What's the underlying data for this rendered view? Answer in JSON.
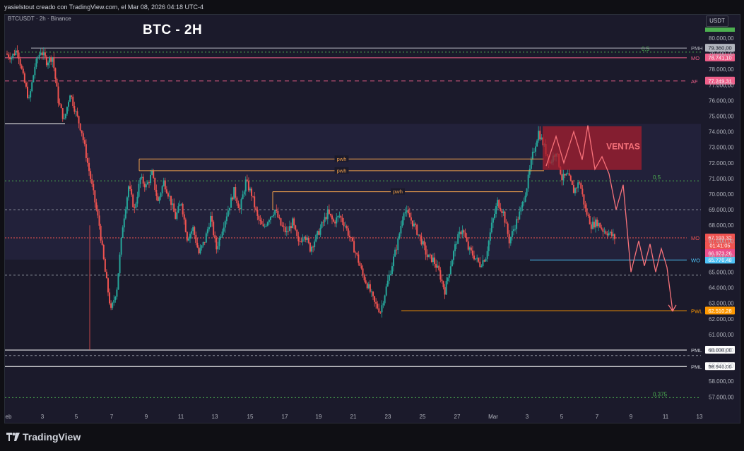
{
  "header": {
    "credit": "yasielstout creado con TradingView.com, el Mar 08, 2026 04:18 UTC-4",
    "symbol": "BTCUSDT · 2h · Binance",
    "title": "BTC - 2H",
    "currency": "USDT",
    "brand": "TradingView"
  },
  "chart_data": {
    "type": "candlestick",
    "title": "BTC - 2H",
    "y_axis": {
      "min": 56000,
      "max": 80500,
      "ticks": [
        "57.000,00",
        "58.000,00",
        "59.000,00",
        "60.000,00",
        "61.000,00",
        "62.000,00",
        "63.000,00",
        "64.000,00",
        "65.000,00",
        "66.000,00",
        "67.000,00",
        "68.000,00",
        "69.000,00",
        "70.000,00",
        "71.000,00",
        "72.000,00",
        "73.000,00",
        "74.000,00",
        "75.000,00",
        "76.000,00",
        "77.000,00",
        "78.000,00",
        "79.000,00",
        "80.000,00"
      ]
    },
    "x_axis": {
      "ticks": [
        "eb",
        "3",
        "5",
        "7",
        "9",
        "11",
        "13",
        "15",
        "17",
        "19",
        "21",
        "23",
        "25",
        "27",
        "Mar",
        "3",
        "5",
        "7",
        "9",
        "11",
        "13"
      ]
    },
    "price_path": [
      79000,
      78800,
      79300,
      77500,
      76000,
      78200,
      79200,
      78500,
      78800,
      76000,
      74700,
      76500,
      75200,
      74000,
      72000,
      70000,
      68000,
      65000,
      62500,
      64000,
      68000,
      70500,
      69000,
      71000,
      70500,
      71300,
      69500,
      70800,
      69800,
      68500,
      69500,
      67200,
      67800,
      66200,
      67000,
      68500,
      66500,
      67800,
      69000,
      70200,
      69000,
      70800,
      70000,
      68500,
      67800,
      68500,
      69000,
      68000,
      67500,
      68200,
      66800,
      67500,
      66500,
      67200,
      68000,
      68800,
      68200,
      68600,
      68000,
      67000,
      66000,
      64800,
      64000,
      63000,
      62500,
      64000,
      65500,
      67000,
      69000,
      68500,
      67800,
      67000,
      66000,
      65800,
      65000,
      63800,
      65500,
      67000,
      67800,
      66500,
      66000,
      65500,
      66000,
      68000,
      69500,
      68800,
      67000,
      68000,
      69000,
      70500,
      72500,
      74000,
      73000,
      72000,
      72800,
      71000,
      71200,
      70200,
      70800,
      69000,
      68000,
      68200,
      67700,
      67500,
      67193
    ]
  },
  "levels": [
    {
      "price": 79360,
      "label": "PMH",
      "value": "79.360,00",
      "color": "#b2b5be"
    },
    {
      "price": 78741.1,
      "label": "MO",
      "value": "78.741,10",
      "color": "#ef5f8a"
    },
    {
      "price": 77249.31,
      "label": "AF",
      "value": "77.249,31",
      "color": "#ef5f8a"
    },
    {
      "price": 67193.32,
      "label": "MO",
      "value": "67.193,32",
      "color": "#ef5350"
    },
    {
      "price": 65776.48,
      "label": "WO",
      "value": "65.776,48",
      "color": "#4fc3f7"
    },
    {
      "price": 62510.28,
      "label": "PWL",
      "value": "62.510,28",
      "color": "#ff9800"
    },
    {
      "price": 60000,
      "label": "PML",
      "value": "60.000,00",
      "color": "#ffffff"
    },
    {
      "price": 58946,
      "label": "PML",
      "value": "58.946,00",
      "color": "#ffffff"
    }
  ],
  "extra_price_labels": {
    "countdown": "01:41:05",
    "bid": "66.973,26"
  },
  "fib_labels": [
    {
      "price": 79100,
      "text": "0,5"
    },
    {
      "price": 70850,
      "text": "0,5"
    },
    {
      "price": 56950,
      "text": "0,375"
    }
  ],
  "pwh_labels": [
    {
      "price": 72250,
      "text": "pwh"
    },
    {
      "price": 71500,
      "text": "pwh"
    },
    {
      "price": 70150,
      "text": "pwh"
    }
  ],
  "zone_label": "VENTAS",
  "colors": {
    "up": "#26a69a",
    "down": "#ef5350",
    "zone": "#a61e2e",
    "projection": "#f7727a"
  }
}
